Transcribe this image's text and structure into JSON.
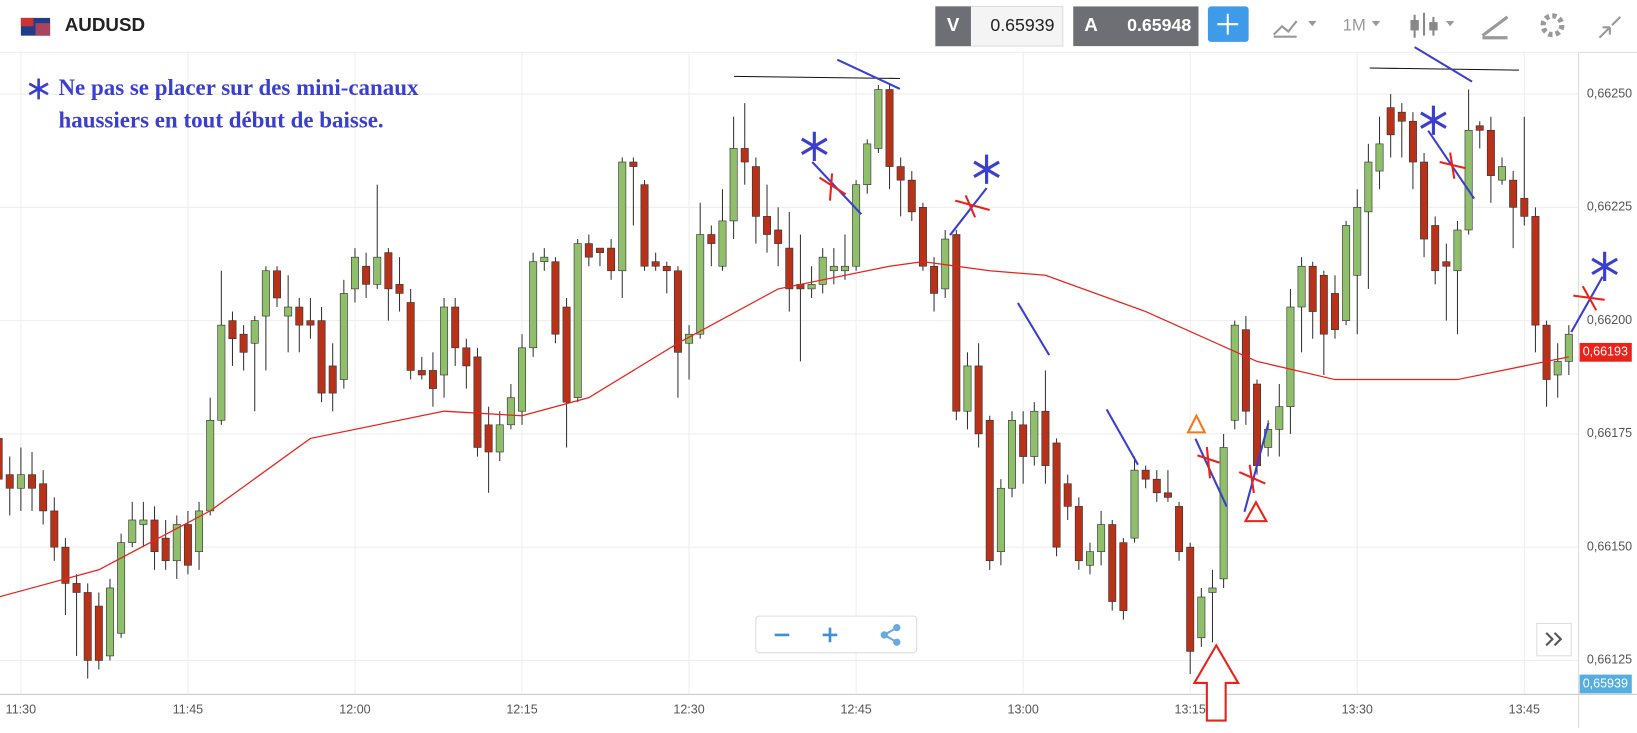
{
  "toolbar": {
    "symbol": "AUDUSD",
    "bid_tag": "V",
    "bid": "0.65939",
    "ask_tag": "A",
    "ask": "0.65948",
    "timeframe": "1M"
  },
  "annotation": {
    "lines": [
      "Ne pas se placer sur des mini-canaux",
      "haussiers en tout début de baisse."
    ]
  },
  "chart_data": {
    "type": "candlestick",
    "x": [
      "11:28",
      "11:29",
      "11:30",
      "11:31",
      "11:32",
      "11:33",
      "11:34",
      "11:35",
      "11:36",
      "11:37",
      "11:38",
      "11:39",
      "11:40",
      "11:41",
      "11:42",
      "11:43",
      "11:44",
      "11:45",
      "11:46",
      "11:47",
      "11:48",
      "11:49",
      "11:50",
      "11:51",
      "11:52",
      "11:53",
      "11:54",
      "11:55",
      "11:56",
      "11:57",
      "11:58",
      "11:59",
      "12:00",
      "12:01",
      "12:02",
      "12:03",
      "12:04",
      "12:05",
      "12:06",
      "12:07",
      "12:08",
      "12:09",
      "12:10",
      "12:11",
      "12:12",
      "12:13",
      "12:14",
      "12:15",
      "12:16",
      "12:17",
      "12:18",
      "12:19",
      "12:20",
      "12:21",
      "12:22",
      "12:23",
      "12:24",
      "12:25",
      "12:26",
      "12:27",
      "12:28",
      "12:29",
      "12:30",
      "12:31",
      "12:32",
      "12:33",
      "12:34",
      "12:35",
      "12:36",
      "12:37",
      "12:38",
      "12:39",
      "12:40",
      "12:41",
      "12:42",
      "12:43",
      "12:44",
      "12:45",
      "12:46",
      "12:47",
      "12:48",
      "12:49",
      "12:50",
      "12:51",
      "12:52",
      "12:53",
      "12:54",
      "12:55",
      "12:56",
      "12:57",
      "12:58",
      "12:59",
      "13:00",
      "13:01",
      "13:02",
      "13:03",
      "13:04",
      "13:05",
      "13:06",
      "13:07",
      "13:08",
      "13:09",
      "13:10",
      "13:11",
      "13:12",
      "13:13",
      "13:14",
      "13:15",
      "13:16",
      "13:17",
      "13:18",
      "13:19",
      "13:20",
      "13:21",
      "13:22",
      "13:23",
      "13:24",
      "13:25",
      "13:26",
      "13:27",
      "13:28",
      "13:29",
      "13:30",
      "13:31",
      "13:32",
      "13:33",
      "13:34",
      "13:35",
      "13:36",
      "13:37",
      "13:38",
      "13:39",
      "13:40",
      "13:41",
      "13:42",
      "13:43",
      "13:44",
      "13:45",
      "13:46",
      "13:47",
      "13:48",
      "13:49"
    ],
    "open": [
      0.66174,
      0.66166,
      0.66163,
      0.66166,
      0.66164,
      0.66158,
      0.6615,
      0.66142,
      0.6614,
      0.66137,
      0.66126,
      0.66131,
      0.66151,
      0.66155,
      0.66156,
      0.66152,
      0.66147,
      0.66155,
      0.66149,
      0.66158,
      0.66178,
      0.662,
      0.66197,
      0.66195,
      0.66201,
      0.66211,
      0.66201,
      0.66203,
      0.662,
      0.662,
      0.6619,
      0.66187,
      0.66207,
      0.66212,
      0.66208,
      0.66215,
      0.66208,
      0.66204,
      0.66189,
      0.66189,
      0.66188,
      0.66203,
      0.66194,
      0.66192,
      0.66177,
      0.66171,
      0.66177,
      0.6618,
      0.66194,
      0.66213,
      0.66213,
      0.66203,
      0.66183,
      0.66217,
      0.66216,
      0.66216,
      0.66211,
      0.66235,
      0.6623,
      0.66213,
      0.66212,
      0.66211,
      0.66195,
      0.66197,
      0.66219,
      0.66212,
      0.66222,
      0.66238,
      0.66234,
      0.66223,
      0.6622,
      0.66216,
      0.66208,
      0.66207,
      0.66208,
      0.66211,
      0.66211,
      0.66212,
      0.6623,
      0.66238,
      0.66251,
      0.66234,
      0.66231,
      0.66225,
      0.66212,
      0.66207,
      0.66219,
      0.6618,
      0.6619,
      0.66178,
      0.66149,
      0.66163,
      0.66177,
      0.6617,
      0.6618,
      0.66173,
      0.66164,
      0.66159,
      0.66146,
      0.66149,
      0.66155,
      0.66151,
      0.66152,
      0.66167,
      0.66165,
      0.66162,
      0.66159,
      0.6615,
      0.6613,
      0.6614,
      0.66143,
      0.66178,
      0.66198,
      0.66186,
      0.66172,
      0.66176,
      0.66181,
      0.66203,
      0.66212,
      0.6621,
      0.66206,
      0.662,
      0.6621,
      0.66224,
      0.66233,
      0.66247,
      0.66246,
      0.66244,
      0.66235,
      0.66221,
      0.66213,
      0.66211,
      0.6622,
      0.66243,
      0.66242,
      0.66231,
      0.66231,
      0.66227,
      0.66223,
      0.66199,
      0.66188,
      0.66191
    ],
    "high": [
      0.66174,
      0.6617,
      0.66172,
      0.66171,
      0.66167,
      0.66161,
      0.66152,
      0.66144,
      0.66142,
      0.6614,
      0.66143,
      0.66153,
      0.6616,
      0.6616,
      0.66159,
      0.66156,
      0.66157,
      0.66158,
      0.6616,
      0.66183,
      0.66211,
      0.66202,
      0.66199,
      0.66201,
      0.66212,
      0.66212,
      0.6621,
      0.66205,
      0.66205,
      0.66203,
      0.66195,
      0.66209,
      0.66216,
      0.66215,
      0.6623,
      0.66216,
      0.66214,
      0.66207,
      0.66192,
      0.66193,
      0.66205,
      0.66205,
      0.66196,
      0.66194,
      0.66181,
      0.6618,
      0.66186,
      0.66197,
      0.66215,
      0.66216,
      0.66214,
      0.66205,
      0.66218,
      0.66219,
      0.66216,
      0.66218,
      0.66236,
      0.66236,
      0.66231,
      0.66215,
      0.66213,
      0.66212,
      0.66199,
      0.66226,
      0.66221,
      0.66229,
      0.66245,
      0.66248,
      0.66236,
      0.6623,
      0.66225,
      0.66224,
      0.66219,
      0.66212,
      0.66216,
      0.66216,
      0.66219,
      0.66231,
      0.6624,
      0.66252,
      0.66252,
      0.66236,
      0.66233,
      0.66226,
      0.66214,
      0.6622,
      0.6622,
      0.66193,
      0.66195,
      0.66179,
      0.66165,
      0.6618,
      0.6618,
      0.66182,
      0.66189,
      0.66174,
      0.66166,
      0.66161,
      0.66151,
      0.66158,
      0.66156,
      0.66152,
      0.6617,
      0.66168,
      0.66167,
      0.66167,
      0.6616,
      0.66151,
      0.66141,
      0.66145,
      0.66175,
      0.662,
      0.66201,
      0.66187,
      0.66178,
      0.66186,
      0.66207,
      0.66214,
      0.66213,
      0.66211,
      0.6621,
      0.66222,
      0.66229,
      0.66239,
      0.66245,
      0.6625,
      0.66248,
      0.66246,
      0.66237,
      0.66223,
      0.66217,
      0.66222,
      0.66251,
      0.66244,
      0.66245,
      0.66236,
      0.66233,
      0.66245,
      0.66225,
      0.662,
      0.66195,
      0.66199
    ],
    "low": [
      0.6616,
      0.66157,
      0.66158,
      0.66158,
      0.66155,
      0.66147,
      0.66135,
      0.66126,
      0.66121,
      0.66123,
      0.66125,
      0.6613,
      0.6615,
      0.6615,
      0.66145,
      0.66145,
      0.66143,
      0.66144,
      0.66145,
      0.66157,
      0.66177,
      0.6619,
      0.66189,
      0.6618,
      0.66189,
      0.66203,
      0.66193,
      0.66193,
      0.66196,
      0.66182,
      0.6618,
      0.66185,
      0.66204,
      0.66205,
      0.66207,
      0.662,
      0.66202,
      0.66187,
      0.66187,
      0.66181,
      0.66183,
      0.6619,
      0.66185,
      0.6617,
      0.66162,
      0.66169,
      0.66176,
      0.66177,
      0.66192,
      0.66211,
      0.66195,
      0.66172,
      0.66182,
      0.66212,
      0.66212,
      0.66209,
      0.66205,
      0.66221,
      0.66211,
      0.66211,
      0.66206,
      0.66183,
      0.66187,
      0.66196,
      0.66212,
      0.66211,
      0.66218,
      0.6623,
      0.66217,
      0.66215,
      0.66212,
      0.66202,
      0.66191,
      0.66205,
      0.66206,
      0.66208,
      0.66209,
      0.66211,
      0.66228,
      0.66237,
      0.66229,
      0.66223,
      0.66222,
      0.66211,
      0.66202,
      0.66205,
      0.66178,
      0.66176,
      0.66172,
      0.66145,
      0.66146,
      0.66161,
      0.66164,
      0.66168,
      0.66164,
      0.66148,
      0.66156,
      0.66145,
      0.66144,
      0.66146,
      0.66136,
      0.66134,
      0.66151,
      0.66163,
      0.6616,
      0.6616,
      0.66147,
      0.66122,
      0.66128,
      0.66129,
      0.66141,
      0.66176,
      0.66177,
      0.66166,
      0.6617,
      0.6617,
      0.66175,
      0.66193,
      0.66196,
      0.66188,
      0.66196,
      0.66199,
      0.66197,
      0.66207,
      0.66229,
      0.66236,
      0.66236,
      0.66229,
      0.66214,
      0.66208,
      0.662,
      0.66197,
      0.66219,
      0.66238,
      0.66226,
      0.6623,
      0.66216,
      0.66221,
      0.66193,
      0.66181,
      0.66183,
      0.66188
    ],
    "close": [
      0.66165,
      0.66163,
      0.66166,
      0.66163,
      0.66158,
      0.6615,
      0.66142,
      0.6614,
      0.66125,
      0.66125,
      0.66141,
      0.66151,
      0.66156,
      0.66156,
      0.66149,
      0.66147,
      0.66155,
      0.66146,
      0.66158,
      0.66178,
      0.66199,
      0.66196,
      0.66193,
      0.662,
      0.66211,
      0.66205,
      0.66203,
      0.66199,
      0.66199,
      0.66184,
      0.66184,
      0.66206,
      0.66214,
      0.66208,
      0.66214,
      0.66207,
      0.66206,
      0.66189,
      0.66188,
      0.66185,
      0.66203,
      0.66194,
      0.6619,
      0.66172,
      0.66171,
      0.66177,
      0.66183,
      0.66194,
      0.66213,
      0.66214,
      0.66197,
      0.66182,
      0.66217,
      0.66214,
      0.66215,
      0.66211,
      0.66235,
      0.66234,
      0.66212,
      0.66212,
      0.66211,
      0.66193,
      0.66197,
      0.66219,
      0.66217,
      0.66222,
      0.66238,
      0.66235,
      0.66223,
      0.66219,
      0.66217,
      0.66207,
      0.66207,
      0.66208,
      0.66214,
      0.66212,
      0.66212,
      0.6623,
      0.66239,
      0.66251,
      0.66234,
      0.66231,
      0.66224,
      0.66212,
      0.66206,
      0.66218,
      0.6618,
      0.6619,
      0.66175,
      0.66147,
      0.66163,
      0.66178,
      0.6617,
      0.6618,
      0.66168,
      0.6615,
      0.66159,
      0.66147,
      0.66149,
      0.66155,
      0.66138,
      0.66136,
      0.66167,
      0.66165,
      0.66162,
      0.66161,
      0.66149,
      0.66127,
      0.66139,
      0.66141,
      0.66172,
      0.66199,
      0.6618,
      0.66168,
      0.66176,
      0.66181,
      0.66203,
      0.66212,
      0.66202,
      0.66197,
      0.66198,
      0.66221,
      0.66225,
      0.66235,
      0.66239,
      0.66241,
      0.66244,
      0.66235,
      0.66218,
      0.66211,
      0.66212,
      0.6622,
      0.66242,
      0.66242,
      0.66232,
      0.66234,
      0.66225,
      0.66223,
      0.66199,
      0.66187,
      0.66191,
      0.66197
    ],
    "up_color": "#8fbf6a",
    "down_color": "#b8321a",
    "moving_average": {
      "color": "#e8231c",
      "x": [
        "11:28",
        "11:31",
        "11:37",
        "11:47",
        "11:56",
        "12:08",
        "12:15",
        "12:21",
        "12:29",
        "12:38",
        "12:48",
        "12:51",
        "12:57",
        "13:02",
        "13:11",
        "13:21",
        "13:28",
        "13:39",
        "13:49"
      ],
      "values": [
        0.66139,
        0.66141,
        0.66145,
        0.66158,
        0.66174,
        0.6618,
        0.66179,
        0.66183,
        0.66195,
        0.66207,
        0.66212,
        0.66213,
        0.66211,
        0.6621,
        0.66202,
        0.66191,
        0.66187,
        0.66187,
        0.66192
      ]
    },
    "ylim": [
      0.661175,
      0.662592
    ],
    "yticks": [
      {
        "value": 0.66125,
        "label": "0,66125"
      },
      {
        "value": 0.6615,
        "label": "0,66150"
      },
      {
        "value": 0.66175,
        "label": "0,66175"
      },
      {
        "value": 0.662,
        "label": "0,66200"
      },
      {
        "value": 0.66225,
        "label": "0,66225"
      },
      {
        "value": 0.6625,
        "label": "0,66250"
      }
    ],
    "xticks": [
      "11:30",
      "11:45",
      "12:00",
      "12:15",
      "12:30",
      "12:45",
      "13:00",
      "13:15",
      "13:30",
      "13:45"
    ],
    "grid": true,
    "last_price": {
      "value": 0.66193,
      "label": "0,66193",
      "color": "#e8231c"
    },
    "bid_label": "0,65939"
  }
}
